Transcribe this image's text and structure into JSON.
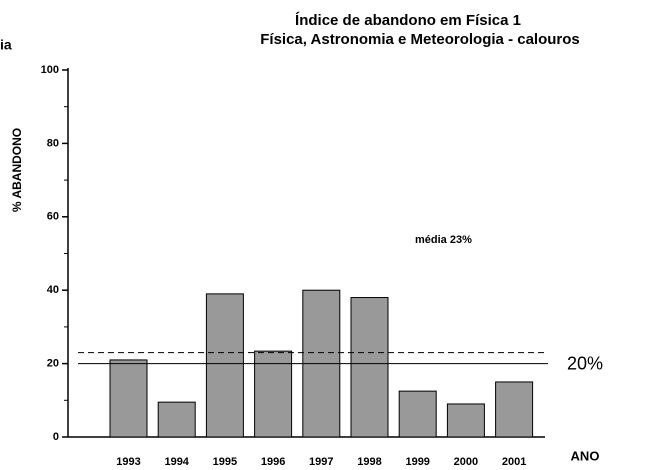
{
  "chart_data": {
    "type": "bar",
    "title": "Índice de abandono em Física 1",
    "subtitle": "Física, Astronomia e Meteorologia - calouros",
    "cropped_text": "ia",
    "x_label": "ANO",
    "y_label": "% ABANDONO",
    "categories": [
      "1993",
      "1994",
      "1995",
      "1996",
      "1997",
      "1998",
      "1999",
      "2000",
      "2001"
    ],
    "values": [
      21,
      9.5,
      39,
      23.4,
      40,
      38,
      12.5,
      9,
      15
    ],
    "color": "#999999",
    "ylim": [
      0,
      100
    ],
    "yticks": [
      0,
      20,
      40,
      60,
      80,
      100
    ],
    "yminor_ticks": [
      10,
      30,
      50,
      70,
      90
    ],
    "reference_lines": [
      {
        "value": 23,
        "style": "dashed"
      },
      {
        "value": 20,
        "style": "solid",
        "label": "20%"
      }
    ],
    "annotation": "média  23%"
  }
}
